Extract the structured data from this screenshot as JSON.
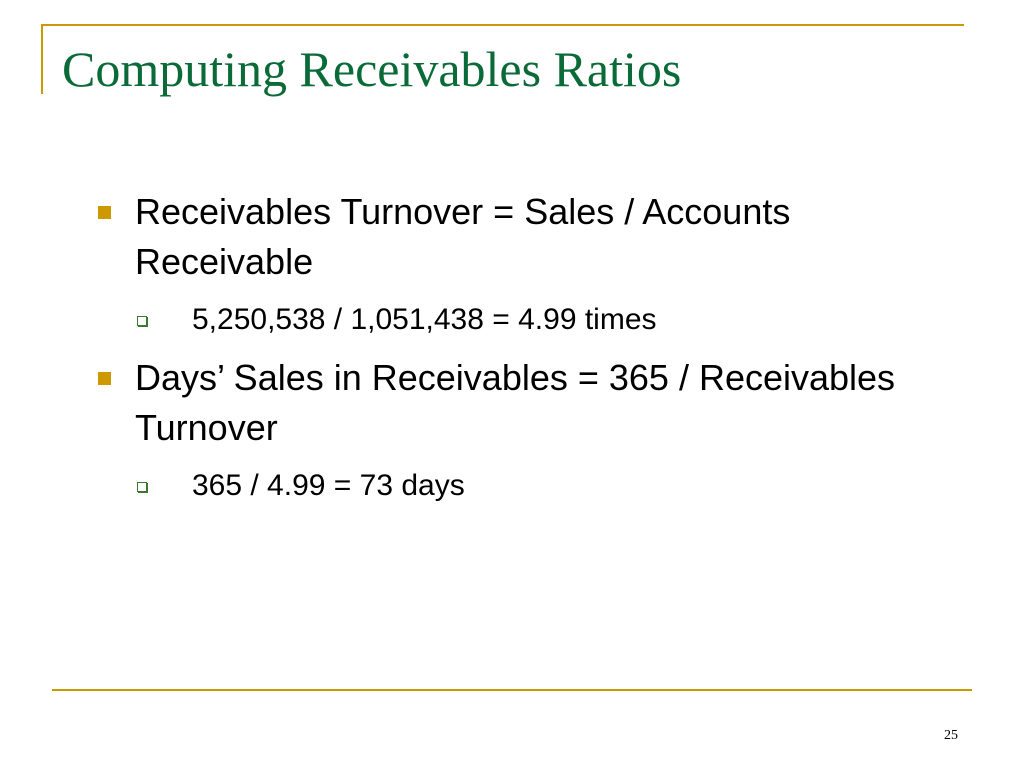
{
  "slide": {
    "title": "Computing Receivables Ratios",
    "accent_color": "#CC9900",
    "title_color": "#0B6B38",
    "bullets": [
      {
        "text": "Receivables Turnover = Sales / Accounts Receivable",
        "sub": "5,250,538 / 1,051,438 = 4.99 times"
      },
      {
        "text": "Days’ Sales in Receivables = 365 / Receivables Turnover",
        "sub": "365 / 4.99 = 73 days"
      }
    ],
    "page_number": "25"
  }
}
